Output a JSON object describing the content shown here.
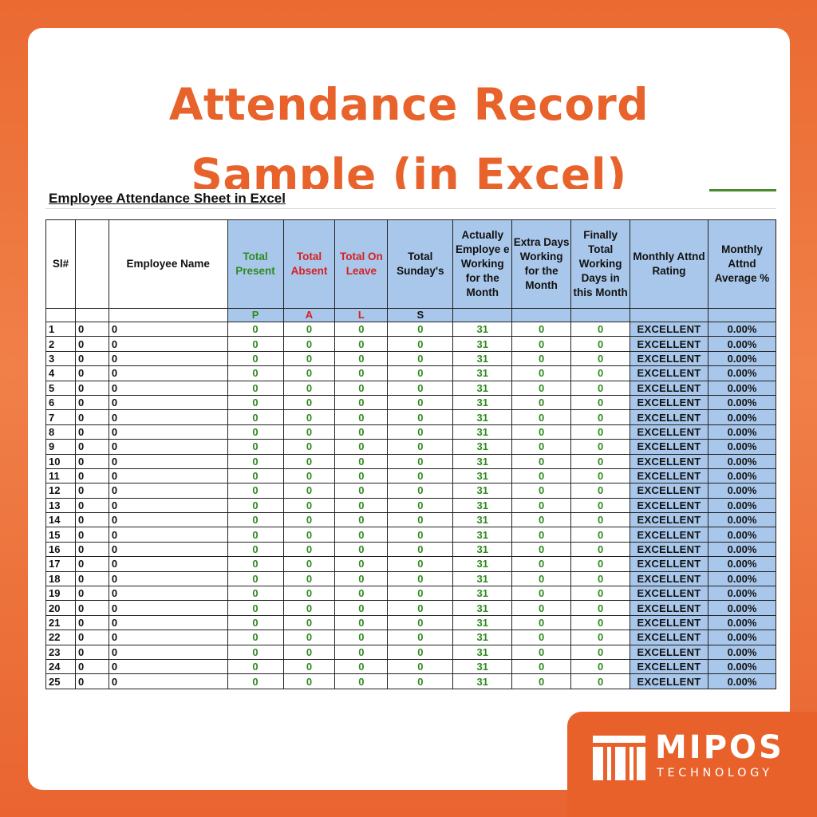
{
  "title": {
    "line1": "Attendance Record",
    "line2": "Sample (in Excel)"
  },
  "sheet": {
    "title": "Employee Attendance Sheet in Excel",
    "headers": [
      {
        "label": "Sl#",
        "color": "#111111",
        "blue": false
      },
      {
        "label": "",
        "color": "#111111",
        "blue": false
      },
      {
        "label": "Employee Name",
        "color": "#111111",
        "blue": false
      },
      {
        "label": "Total Present",
        "color": "#2e8b1e",
        "blue": true
      },
      {
        "label": "Total Absent",
        "color": "#d62020",
        "blue": true
      },
      {
        "label": "Total On Leave",
        "color": "#d62020",
        "blue": true
      },
      {
        "label": "Total Sunday's",
        "color": "#111111",
        "blue": true
      },
      {
        "label": "Actually Employe e Working for the Month",
        "color": "#111111",
        "blue": true
      },
      {
        "label": "Extra Days Working for the Month",
        "color": "#111111",
        "blue": true
      },
      {
        "label": "Finally Total Working Days in this Month",
        "color": "#111111",
        "blue": true
      },
      {
        "label": "Monthly Attnd Rating",
        "color": "#111111",
        "blue": true
      },
      {
        "label": "Monthly Attnd Average %",
        "color": "#111111",
        "blue": true
      }
    ],
    "codes": [
      "",
      "",
      "",
      "P",
      "A",
      "L",
      "S",
      "",
      "",
      "",
      "",
      ""
    ],
    "rows": [
      {
        "sl": "1",
        "id": "0",
        "name": "0",
        "present": "0",
        "absent": "0",
        "leave": "0",
        "sundays": "0",
        "working": "31",
        "extra": "0",
        "total": "0",
        "rating": "EXCELLENT",
        "average": "0.00%"
      },
      {
        "sl": "2",
        "id": "0",
        "name": "0",
        "present": "0",
        "absent": "0",
        "leave": "0",
        "sundays": "0",
        "working": "31",
        "extra": "0",
        "total": "0",
        "rating": "EXCELLENT",
        "average": "0.00%"
      },
      {
        "sl": "3",
        "id": "0",
        "name": "0",
        "present": "0",
        "absent": "0",
        "leave": "0",
        "sundays": "0",
        "working": "31",
        "extra": "0",
        "total": "0",
        "rating": "EXCELLENT",
        "average": "0.00%"
      },
      {
        "sl": "4",
        "id": "0",
        "name": "0",
        "present": "0",
        "absent": "0",
        "leave": "0",
        "sundays": "0",
        "working": "31",
        "extra": "0",
        "total": "0",
        "rating": "EXCELLENT",
        "average": "0.00%"
      },
      {
        "sl": "5",
        "id": "0",
        "name": "0",
        "present": "0",
        "absent": "0",
        "leave": "0",
        "sundays": "0",
        "working": "31",
        "extra": "0",
        "total": "0",
        "rating": "EXCELLENT",
        "average": "0.00%"
      },
      {
        "sl": "6",
        "id": "0",
        "name": "0",
        "present": "0",
        "absent": "0",
        "leave": "0",
        "sundays": "0",
        "working": "31",
        "extra": "0",
        "total": "0",
        "rating": "EXCELLENT",
        "average": "0.00%"
      },
      {
        "sl": "7",
        "id": "0",
        "name": "0",
        "present": "0",
        "absent": "0",
        "leave": "0",
        "sundays": "0",
        "working": "31",
        "extra": "0",
        "total": "0",
        "rating": "EXCELLENT",
        "average": "0.00%"
      },
      {
        "sl": "8",
        "id": "0",
        "name": "0",
        "present": "0",
        "absent": "0",
        "leave": "0",
        "sundays": "0",
        "working": "31",
        "extra": "0",
        "total": "0",
        "rating": "EXCELLENT",
        "average": "0.00%"
      },
      {
        "sl": "9",
        "id": "0",
        "name": "0",
        "present": "0",
        "absent": "0",
        "leave": "0",
        "sundays": "0",
        "working": "31",
        "extra": "0",
        "total": "0",
        "rating": "EXCELLENT",
        "average": "0.00%"
      },
      {
        "sl": "10",
        "id": "0",
        "name": "0",
        "present": "0",
        "absent": "0",
        "leave": "0",
        "sundays": "0",
        "working": "31",
        "extra": "0",
        "total": "0",
        "rating": "EXCELLENT",
        "average": "0.00%"
      },
      {
        "sl": "11",
        "id": "0",
        "name": "0",
        "present": "0",
        "absent": "0",
        "leave": "0",
        "sundays": "0",
        "working": "31",
        "extra": "0",
        "total": "0",
        "rating": "EXCELLENT",
        "average": "0.00%"
      },
      {
        "sl": "12",
        "id": "0",
        "name": "0",
        "present": "0",
        "absent": "0",
        "leave": "0",
        "sundays": "0",
        "working": "31",
        "extra": "0",
        "total": "0",
        "rating": "EXCELLENT",
        "average": "0.00%"
      },
      {
        "sl": "13",
        "id": "0",
        "name": "0",
        "present": "0",
        "absent": "0",
        "leave": "0",
        "sundays": "0",
        "working": "31",
        "extra": "0",
        "total": "0",
        "rating": "EXCELLENT",
        "average": "0.00%"
      },
      {
        "sl": "14",
        "id": "0",
        "name": "0",
        "present": "0",
        "absent": "0",
        "leave": "0",
        "sundays": "0",
        "working": "31",
        "extra": "0",
        "total": "0",
        "rating": "EXCELLENT",
        "average": "0.00%"
      },
      {
        "sl": "15",
        "id": "0",
        "name": "0",
        "present": "0",
        "absent": "0",
        "leave": "0",
        "sundays": "0",
        "working": "31",
        "extra": "0",
        "total": "0",
        "rating": "EXCELLENT",
        "average": "0.00%"
      },
      {
        "sl": "16",
        "id": "0",
        "name": "0",
        "present": "0",
        "absent": "0",
        "leave": "0",
        "sundays": "0",
        "working": "31",
        "extra": "0",
        "total": "0",
        "rating": "EXCELLENT",
        "average": "0.00%"
      },
      {
        "sl": "17",
        "id": "0",
        "name": "0",
        "present": "0",
        "absent": "0",
        "leave": "0",
        "sundays": "0",
        "working": "31",
        "extra": "0",
        "total": "0",
        "rating": "EXCELLENT",
        "average": "0.00%"
      },
      {
        "sl": "18",
        "id": "0",
        "name": "0",
        "present": "0",
        "absent": "0",
        "leave": "0",
        "sundays": "0",
        "working": "31",
        "extra": "0",
        "total": "0",
        "rating": "EXCELLENT",
        "average": "0.00%"
      },
      {
        "sl": "19",
        "id": "0",
        "name": "0",
        "present": "0",
        "absent": "0",
        "leave": "0",
        "sundays": "0",
        "working": "31",
        "extra": "0",
        "total": "0",
        "rating": "EXCELLENT",
        "average": "0.00%"
      },
      {
        "sl": "20",
        "id": "0",
        "name": "0",
        "present": "0",
        "absent": "0",
        "leave": "0",
        "sundays": "0",
        "working": "31",
        "extra": "0",
        "total": "0",
        "rating": "EXCELLENT",
        "average": "0.00%"
      },
      {
        "sl": "21",
        "id": "0",
        "name": "0",
        "present": "0",
        "absent": "0",
        "leave": "0",
        "sundays": "0",
        "working": "31",
        "extra": "0",
        "total": "0",
        "rating": "EXCELLENT",
        "average": "0.00%"
      },
      {
        "sl": "22",
        "id": "0",
        "name": "0",
        "present": "0",
        "absent": "0",
        "leave": "0",
        "sundays": "0",
        "working": "31",
        "extra": "0",
        "total": "0",
        "rating": "EXCELLENT",
        "average": "0.00%"
      },
      {
        "sl": "23",
        "id": "0",
        "name": "0",
        "present": "0",
        "absent": "0",
        "leave": "0",
        "sundays": "0",
        "working": "31",
        "extra": "0",
        "total": "0",
        "rating": "EXCELLENT",
        "average": "0.00%"
      },
      {
        "sl": "24",
        "id": "0",
        "name": "0",
        "present": "0",
        "absent": "0",
        "leave": "0",
        "sundays": "0",
        "working": "31",
        "extra": "0",
        "total": "0",
        "rating": "EXCELLENT",
        "average": "0.00%"
      },
      {
        "sl": "25",
        "id": "0",
        "name": "0",
        "present": "0",
        "absent": "0",
        "leave": "0",
        "sundays": "0",
        "working": "31",
        "extra": "0",
        "total": "0",
        "rating": "EXCELLENT",
        "average": "0.00%"
      }
    ]
  },
  "brand": {
    "name": "MIPOS",
    "sub": "TECHNOLOGY",
    "icon": "mipos-logo-icon",
    "color": "#e8612a"
  },
  "colors": {
    "accent": "#e8632b",
    "header_blue": "#a8c7ea",
    "value_green": "#2e8b1e",
    "label_red": "#d62020"
  }
}
